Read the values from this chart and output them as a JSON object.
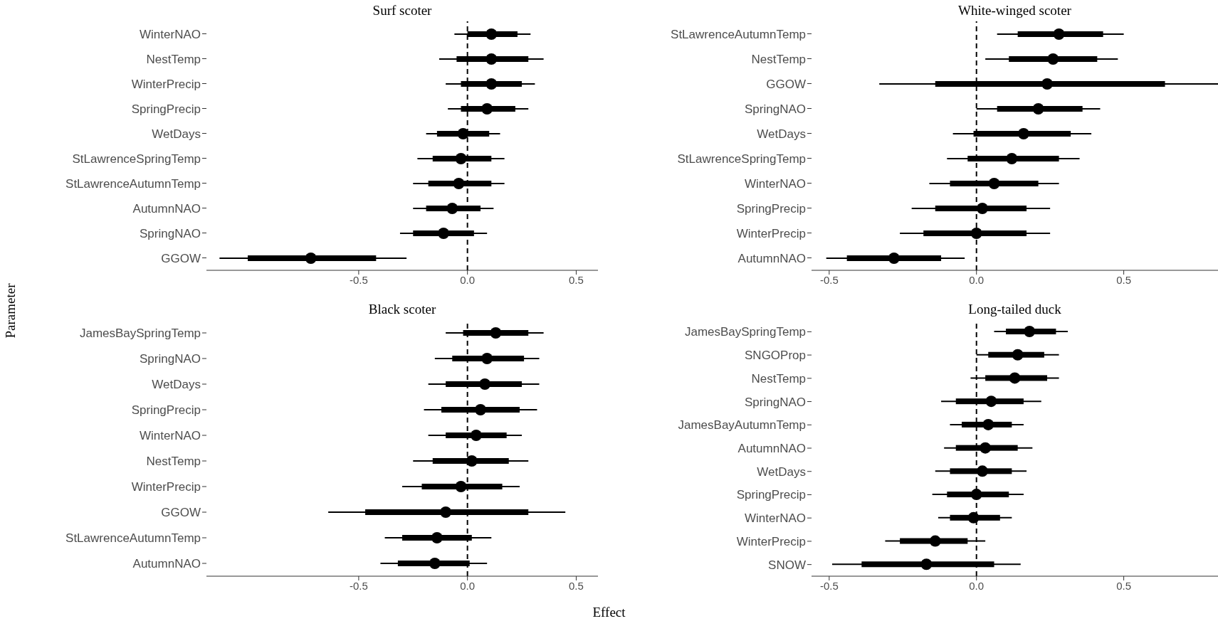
{
  "chart_data": [
    {
      "type": "box",
      "orientation": "horizontal",
      "title": "Surf scoter",
      "ylabel": "Parameter",
      "color": "#000000",
      "categories": [
        "WinterNAO",
        "NestTemp",
        "WinterPrecip",
        "SpringPrecip",
        "WetDays",
        "StLawrenceSpringTemp",
        "StLawrenceAutumnTemp",
        "AutumnNAO",
        "SpringNAO",
        "GGOW"
      ],
      "boxes": [
        {
          "low": -0.06,
          "q1": 0.0,
          "median": 0.11,
          "q3": 0.23,
          "high": 0.29
        },
        {
          "low": -0.13,
          "q1": -0.05,
          "median": 0.11,
          "q3": 0.28,
          "high": 0.35
        },
        {
          "low": -0.1,
          "q1": -0.03,
          "median": 0.11,
          "q3": 0.25,
          "high": 0.31
        },
        {
          "low": -0.09,
          "q1": -0.03,
          "median": 0.09,
          "q3": 0.22,
          "high": 0.28
        },
        {
          "low": -0.19,
          "q1": -0.14,
          "median": -0.02,
          "q3": 0.1,
          "high": 0.15
        },
        {
          "low": -0.23,
          "q1": -0.16,
          "median": -0.03,
          "q3": 0.11,
          "high": 0.17
        },
        {
          "low": -0.25,
          "q1": -0.18,
          "median": -0.04,
          "q3": 0.11,
          "high": 0.17
        },
        {
          "low": -0.25,
          "q1": -0.19,
          "median": -0.07,
          "q3": 0.06,
          "high": 0.12
        },
        {
          "low": -0.31,
          "q1": -0.25,
          "median": -0.11,
          "q3": 0.03,
          "high": 0.09
        },
        {
          "low": -1.14,
          "q1": -1.01,
          "median": -0.72,
          "q3": -0.42,
          "high": -0.28
        }
      ],
      "xlim": [
        -1.2,
        0.6
      ],
      "xticks": [
        {
          "value": -0.5,
          "label": "-0.5"
        },
        {
          "value": 0,
          "label": "0.0"
        },
        {
          "value": 0.5,
          "label": "0.5"
        }
      ],
      "ref_lines": [
        {
          "axis": "x",
          "value": 0,
          "line_style": "dashed"
        }
      ]
    },
    {
      "type": "box",
      "orientation": "horizontal",
      "title": "White-winged scoter",
      "color": "#000000",
      "categories": [
        "StLawrenceAutumnTemp",
        "NestTemp",
        "GGOW",
        "SpringNAO",
        "WetDays",
        "StLawrenceSpringTemp",
        "WinterNAO",
        "SpringPrecip",
        "WinterPrecip",
        "AutumnNAO"
      ],
      "boxes": [
        {
          "low": 0.07,
          "q1": 0.14,
          "median": 0.28,
          "q3": 0.43,
          "high": 0.5
        },
        {
          "low": 0.03,
          "q1": 0.11,
          "median": 0.26,
          "q3": 0.41,
          "high": 0.48
        },
        {
          "low": -0.33,
          "q1": -0.14,
          "median": 0.24,
          "q3": 0.64,
          "high": 0.82
        },
        {
          "low": 0.0,
          "q1": 0.07,
          "median": 0.21,
          "q3": 0.36,
          "high": 0.42
        },
        {
          "low": -0.08,
          "q1": -0.01,
          "median": 0.16,
          "q3": 0.32,
          "high": 0.39
        },
        {
          "low": -0.1,
          "q1": -0.03,
          "median": 0.12,
          "q3": 0.28,
          "high": 0.35
        },
        {
          "low": -0.16,
          "q1": -0.09,
          "median": 0.06,
          "q3": 0.21,
          "high": 0.28
        },
        {
          "low": -0.22,
          "q1": -0.14,
          "median": 0.02,
          "q3": 0.17,
          "high": 0.25
        },
        {
          "low": -0.26,
          "q1": -0.18,
          "median": 0.0,
          "q3": 0.17,
          "high": 0.25
        },
        {
          "low": -0.51,
          "q1": -0.44,
          "median": -0.28,
          "q3": -0.12,
          "high": -0.04
        }
      ],
      "xlim": [
        -0.56,
        0.82
      ],
      "xticks": [
        {
          "value": -0.5,
          "label": "-0.5"
        },
        {
          "value": 0,
          "label": "0.0"
        },
        {
          "value": 0.5,
          "label": "0.5"
        }
      ],
      "ref_lines": [
        {
          "axis": "x",
          "value": 0,
          "line_style": "dashed"
        }
      ]
    },
    {
      "type": "box",
      "orientation": "horizontal",
      "title": "Black scoter",
      "xlabel": "Effect",
      "color": "#000000",
      "categories": [
        "JamesBaySpringTemp",
        "SpringNAO",
        "WetDays",
        "SpringPrecip",
        "WinterNAO",
        "NestTemp",
        "WinterPrecip",
        "GGOW",
        "StLawrenceAutumnTemp",
        "AutumnNAO"
      ],
      "boxes": [
        {
          "low": -0.1,
          "q1": -0.02,
          "median": 0.13,
          "q3": 0.28,
          "high": 0.35
        },
        {
          "low": -0.15,
          "q1": -0.07,
          "median": 0.09,
          "q3": 0.26,
          "high": 0.33
        },
        {
          "low": -0.18,
          "q1": -0.1,
          "median": 0.08,
          "q3": 0.25,
          "high": 0.33
        },
        {
          "low": -0.2,
          "q1": -0.12,
          "median": 0.06,
          "q3": 0.24,
          "high": 0.32
        },
        {
          "low": -0.18,
          "q1": -0.1,
          "median": 0.04,
          "q3": 0.18,
          "high": 0.25
        },
        {
          "low": -0.25,
          "q1": -0.16,
          "median": 0.02,
          "q3": 0.19,
          "high": 0.28
        },
        {
          "low": -0.3,
          "q1": -0.21,
          "median": -0.03,
          "q3": 0.16,
          "high": 0.24
        },
        {
          "low": -0.64,
          "q1": -0.47,
          "median": -0.1,
          "q3": 0.28,
          "high": 0.45
        },
        {
          "low": -0.38,
          "q1": -0.3,
          "median": -0.14,
          "q3": 0.02,
          "high": 0.11
        },
        {
          "low": -0.4,
          "q1": -0.32,
          "median": -0.15,
          "q3": 0.01,
          "high": 0.09
        }
      ],
      "xlim": [
        -1.2,
        0.6
      ],
      "xticks": [
        {
          "value": -0.5,
          "label": "-0.5"
        },
        {
          "value": 0,
          "label": "0.0"
        },
        {
          "value": 0.5,
          "label": "0.5"
        }
      ],
      "ref_lines": [
        {
          "axis": "x",
          "value": 0,
          "line_style": "dashed"
        }
      ]
    },
    {
      "type": "box",
      "orientation": "horizontal",
      "title": "Long-tailed duck",
      "color": "#000000",
      "categories": [
        "JamesBaySpringTemp",
        "SNGOProp",
        "NestTemp",
        "SpringNAO",
        "JamesBayAutumnTemp",
        "AutumnNAO",
        "WetDays",
        "SpringPrecip",
        "WinterNAO",
        "WinterPrecip",
        "SNOW"
      ],
      "boxes": [
        {
          "low": 0.06,
          "q1": 0.1,
          "median": 0.18,
          "q3": 0.27,
          "high": 0.31
        },
        {
          "low": 0.0,
          "q1": 0.04,
          "median": 0.14,
          "q3": 0.23,
          "high": 0.28
        },
        {
          "low": -0.02,
          "q1": 0.03,
          "median": 0.13,
          "q3": 0.24,
          "high": 0.28
        },
        {
          "low": -0.12,
          "q1": -0.07,
          "median": 0.05,
          "q3": 0.16,
          "high": 0.22
        },
        {
          "low": -0.09,
          "q1": -0.05,
          "median": 0.04,
          "q3": 0.12,
          "high": 0.16
        },
        {
          "low": -0.11,
          "q1": -0.07,
          "median": 0.03,
          "q3": 0.14,
          "high": 0.19
        },
        {
          "low": -0.14,
          "q1": -0.09,
          "median": 0.02,
          "q3": 0.12,
          "high": 0.17
        },
        {
          "low": -0.15,
          "q1": -0.1,
          "median": 0.0,
          "q3": 0.11,
          "high": 0.16
        },
        {
          "low": -0.13,
          "q1": -0.09,
          "median": -0.01,
          "q3": 0.08,
          "high": 0.12
        },
        {
          "low": -0.31,
          "q1": -0.26,
          "median": -0.14,
          "q3": -0.03,
          "high": 0.03
        },
        {
          "low": -0.49,
          "q1": -0.39,
          "median": -0.17,
          "q3": 0.06,
          "high": 0.15
        }
      ],
      "xlim": [
        -0.56,
        0.82
      ],
      "xticks": [
        {
          "value": -0.5,
          "label": "-0.5"
        },
        {
          "value": 0,
          "label": "0.0"
        },
        {
          "value": 0.5,
          "label": "0.5"
        }
      ],
      "ref_lines": [
        {
          "axis": "x",
          "value": 0,
          "line_style": "dashed"
        }
      ]
    }
  ]
}
